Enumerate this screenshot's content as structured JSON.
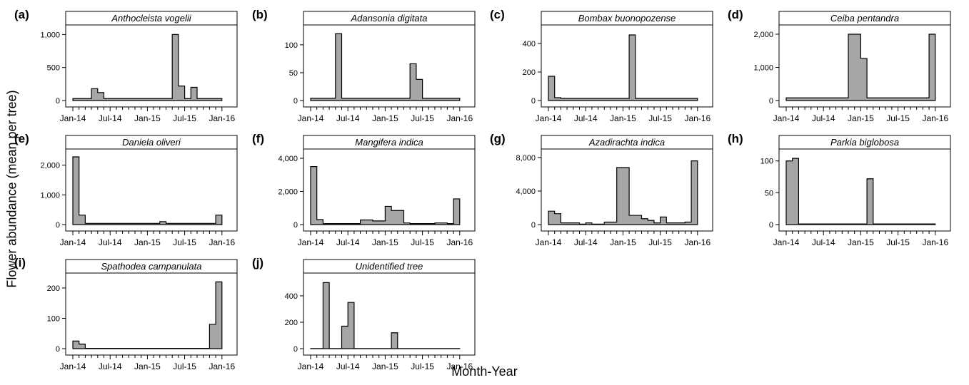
{
  "figure": {
    "ylabel": "Flower abundance (mean per tree)",
    "xlabel": "Month-Year"
  },
  "chart_data": [
    {
      "type": "area",
      "panel_label": "(a)",
      "title": "Anthocleista vogelii",
      "x": [
        "Jan-14",
        "Feb-14",
        "Mar-14",
        "Apr-14",
        "May-14",
        "Jun-14",
        "Jul-14",
        "Aug-14",
        "Sep-14",
        "Oct-14",
        "Nov-14",
        "Dec-14",
        "Jan-15",
        "Feb-15",
        "Mar-15",
        "Apr-15",
        "May-15",
        "Jun-15",
        "Jul-15",
        "Aug-15",
        "Sep-15",
        "Oct-15",
        "Nov-15",
        "Dec-15"
      ],
      "values": [
        30,
        30,
        30,
        180,
        120,
        30,
        30,
        30,
        30,
        30,
        30,
        30,
        30,
        30,
        30,
        30,
        1000,
        220,
        30,
        200,
        30,
        30,
        30,
        30
      ],
      "yticks": [
        0,
        500,
        1000
      ],
      "yticklabels": [
        "0",
        "500",
        "1,000"
      ],
      "ylim": [
        0,
        1080
      ],
      "xticklabels": [
        "Jan-14",
        "Jul-14",
        "Jan-15",
        "Jul-15",
        "Jan-16"
      ]
    },
    {
      "type": "area",
      "panel_label": "(b)",
      "title": "Adansonia digitata",
      "x": [
        "Jan-14",
        "Feb-14",
        "Mar-14",
        "Apr-14",
        "May-14",
        "Jun-14",
        "Jul-14",
        "Aug-14",
        "Sep-14",
        "Oct-14",
        "Nov-14",
        "Dec-14",
        "Jan-15",
        "Feb-15",
        "Mar-15",
        "Apr-15",
        "May-15",
        "Jun-15",
        "Jul-15",
        "Aug-15",
        "Sep-15",
        "Oct-15",
        "Nov-15",
        "Dec-15"
      ],
      "values": [
        4,
        4,
        4,
        4,
        120,
        4,
        4,
        4,
        4,
        4,
        4,
        4,
        4,
        4,
        4,
        4,
        66,
        38,
        4,
        4,
        4,
        4,
        4,
        4
      ],
      "yticks": [
        0,
        50,
        100
      ],
      "yticklabels": [
        "0",
        "50",
        "100"
      ],
      "ylim": [
        0,
        128
      ],
      "xticklabels": [
        "Jan-14",
        "Jul-14",
        "Jan-15",
        "Jul-15",
        "Jan-16"
      ]
    },
    {
      "type": "area",
      "panel_label": "(c)",
      "title": "Bombax buonopozense",
      "x": [
        "Jan-14",
        "Feb-14",
        "Mar-14",
        "Apr-14",
        "May-14",
        "Jun-14",
        "Jul-14",
        "Aug-14",
        "Sep-14",
        "Oct-14",
        "Nov-14",
        "Dec-14",
        "Jan-15",
        "Feb-15",
        "Mar-15",
        "Apr-15",
        "May-15",
        "Jun-15",
        "Jul-15",
        "Aug-15",
        "Sep-15",
        "Oct-15",
        "Nov-15",
        "Dec-15"
      ],
      "values": [
        170,
        20,
        15,
        15,
        15,
        15,
        15,
        15,
        15,
        15,
        15,
        15,
        15,
        460,
        15,
        15,
        15,
        15,
        15,
        15,
        15,
        15,
        15,
        15
      ],
      "yticks": [
        0,
        200,
        400
      ],
      "yticklabels": [
        "0",
        "200",
        "400"
      ],
      "ylim": [
        0,
        500
      ],
      "xticklabels": [
        "Jan-14",
        "Jul-14",
        "Jan-15",
        "Jul-15",
        "Jan-16"
      ]
    },
    {
      "type": "area",
      "panel_label": "(d)",
      "title": "Ceiba pentandra",
      "x": [
        "Jan-14",
        "Feb-14",
        "Mar-14",
        "Apr-14",
        "May-14",
        "Jun-14",
        "Jul-14",
        "Aug-14",
        "Sep-14",
        "Oct-14",
        "Nov-14",
        "Dec-14",
        "Jan-15",
        "Feb-15",
        "Mar-15",
        "Apr-15",
        "May-15",
        "Jun-15",
        "Jul-15",
        "Aug-15",
        "Sep-15",
        "Oct-15",
        "Nov-15",
        "Dec-15"
      ],
      "values": [
        80,
        80,
        80,
        80,
        80,
        80,
        80,
        80,
        80,
        80,
        2000,
        2000,
        1270,
        80,
        80,
        80,
        80,
        80,
        80,
        80,
        80,
        80,
        80,
        2000
      ],
      "yticks": [
        0,
        1000,
        2000
      ],
      "yticklabels": [
        "0",
        "1,000",
        "2,000"
      ],
      "ylim": [
        0,
        2150
      ],
      "xticklabels": [
        "Jan-14",
        "Jul-14",
        "Jan-15",
        "Jul-15",
        "Jan-16"
      ]
    },
    {
      "type": "area",
      "panel_label": "(e)",
      "title": "Daniela oliveri",
      "x": [
        "Jan-14",
        "Feb-14",
        "Mar-14",
        "Apr-14",
        "May-14",
        "Jun-14",
        "Jul-14",
        "Aug-14",
        "Sep-14",
        "Oct-14",
        "Nov-14",
        "Dec-14",
        "Jan-15",
        "Feb-15",
        "Mar-15",
        "Apr-15",
        "May-15",
        "Jun-15",
        "Jul-15",
        "Aug-15",
        "Sep-15",
        "Oct-15",
        "Nov-15",
        "Dec-15"
      ],
      "values": [
        2280,
        320,
        40,
        40,
        40,
        40,
        40,
        40,
        40,
        40,
        40,
        40,
        40,
        40,
        100,
        40,
        40,
        40,
        40,
        40,
        40,
        40,
        40,
        320
      ],
      "yticks": [
        0,
        1000,
        2000
      ],
      "yticklabels": [
        "0",
        "1,000",
        "2,000"
      ],
      "ylim": [
        0,
        2400
      ],
      "xticklabels": [
        "Jan-14",
        "Jul-14",
        "Jan-15",
        "Jul-15",
        "Jan-16"
      ]
    },
    {
      "type": "area",
      "panel_label": "(f)",
      "title": "Mangifera indica",
      "x": [
        "Jan-14",
        "Feb-14",
        "Mar-14",
        "Apr-14",
        "May-14",
        "Jun-14",
        "Jul-14",
        "Aug-14",
        "Sep-14",
        "Oct-14",
        "Nov-14",
        "Dec-14",
        "Jan-15",
        "Feb-15",
        "Mar-15",
        "Apr-15",
        "May-15",
        "Jun-15",
        "Jul-15",
        "Aug-15",
        "Sep-15",
        "Oct-15",
        "Nov-15",
        "Dec-15"
      ],
      "values": [
        3500,
        300,
        60,
        60,
        60,
        60,
        60,
        60,
        280,
        280,
        220,
        220,
        1100,
        850,
        850,
        100,
        60,
        60,
        60,
        60,
        100,
        100,
        60,
        1550
      ],
      "yticks": [
        0,
        2000,
        4000
      ],
      "yticklabels": [
        "0",
        "2,000",
        "4,000"
      ],
      "ylim": [
        0,
        4300
      ],
      "xticklabels": [
        "Jan-14",
        "Jul-14",
        "Jan-15",
        "Jul-15",
        "Jan-16"
      ]
    },
    {
      "type": "area",
      "panel_label": "(g)",
      "title": "Azadirachta indica",
      "x": [
        "Jan-14",
        "Feb-14",
        "Mar-14",
        "Apr-14",
        "May-14",
        "Jun-14",
        "Jul-14",
        "Aug-14",
        "Sep-14",
        "Oct-14",
        "Nov-14",
        "Dec-14",
        "Jan-15",
        "Feb-15",
        "Mar-15",
        "Apr-15",
        "May-15",
        "Jun-15",
        "Jul-15",
        "Aug-15",
        "Sep-15",
        "Oct-15",
        "Nov-15",
        "Dec-15"
      ],
      "values": [
        1600,
        1300,
        200,
        200,
        200,
        50,
        200,
        50,
        50,
        300,
        300,
        6800,
        6800,
        1100,
        1100,
        700,
        500,
        200,
        900,
        200,
        200,
        200,
        300,
        7600
      ],
      "yticks": [
        0,
        4000,
        8000
      ],
      "yticklabels": [
        "0",
        "4,000",
        "8,000"
      ],
      "ylim": [
        0,
        8500
      ],
      "xticklabels": [
        "Jan-14",
        "Jul-14",
        "Jan-15",
        "Jul-15",
        "Jan-16"
      ]
    },
    {
      "type": "area",
      "panel_label": "(h)",
      "title": "Parkia biglobosa",
      "x": [
        "Jan-14",
        "Feb-14",
        "Mar-14",
        "Apr-14",
        "May-14",
        "Jun-14",
        "Jul-14",
        "Aug-14",
        "Sep-14",
        "Oct-14",
        "Nov-14",
        "Dec-14",
        "Jan-15",
        "Feb-15",
        "Mar-15",
        "Apr-15",
        "May-15",
        "Jun-15",
        "Jul-15",
        "Aug-15",
        "Sep-15",
        "Oct-15",
        "Nov-15",
        "Dec-15"
      ],
      "values": [
        100,
        104,
        1,
        1,
        1,
        1,
        1,
        1,
        1,
        1,
        1,
        1,
        1,
        72,
        1,
        1,
        1,
        1,
        1,
        1,
        1,
        1,
        1,
        1
      ],
      "yticks": [
        0,
        50,
        100
      ],
      "yticklabels": [
        "0",
        "50",
        "100"
      ],
      "ylim": [
        0,
        112
      ],
      "xticklabels": [
        "Jan-14",
        "Jul-14",
        "Jan-15",
        "Jul-15",
        "Jan-16"
      ]
    },
    {
      "type": "area",
      "panel_label": "(i)",
      "title": "Spathodea campanulata",
      "x": [
        "Jan-14",
        "Feb-14",
        "Mar-14",
        "Apr-14",
        "May-14",
        "Jun-14",
        "Jul-14",
        "Aug-14",
        "Sep-14",
        "Oct-14",
        "Nov-14",
        "Dec-14",
        "Jan-15",
        "Feb-15",
        "Mar-15",
        "Apr-15",
        "May-15",
        "Jun-15",
        "Jul-15",
        "Aug-15",
        "Sep-15",
        "Oct-15",
        "Nov-15",
        "Dec-15"
      ],
      "values": [
        25,
        15,
        1,
        1,
        1,
        1,
        1,
        1,
        1,
        1,
        1,
        1,
        1,
        1,
        1,
        1,
        1,
        1,
        1,
        1,
        1,
        1,
        80,
        220
      ],
      "yticks": [
        0,
        100,
        200
      ],
      "yticklabels": [
        "0",
        "100",
        "200"
      ],
      "ylim": [
        0,
        235
      ],
      "xticklabels": [
        "Jan-14",
        "Jul-14",
        "Jan-15",
        "Jul-15",
        "Jan-16"
      ]
    },
    {
      "type": "area",
      "panel_label": "(j)",
      "title": "Unidentified tree",
      "x": [
        "Jan-14",
        "Feb-14",
        "Mar-14",
        "Apr-14",
        "May-14",
        "Jun-14",
        "Jul-14",
        "Aug-14",
        "Sep-14",
        "Oct-14",
        "Nov-14",
        "Dec-14",
        "Jan-15",
        "Feb-15",
        "Mar-15",
        "Apr-15",
        "May-15",
        "Jun-15",
        "Jul-15",
        "Aug-15",
        "Sep-15",
        "Oct-15",
        "Nov-15",
        "Dec-15"
      ],
      "values": [
        1,
        1,
        500,
        1,
        1,
        170,
        350,
        1,
        1,
        1,
        1,
        1,
        1,
        120,
        1,
        1,
        1,
        1,
        1,
        1,
        1,
        1,
        1,
        1
      ],
      "yticks": [
        0,
        200,
        400
      ],
      "yticklabels": [
        "0",
        "200",
        "400"
      ],
      "ylim": [
        0,
        540
      ],
      "xticklabels": [
        "Jan-14",
        "Jul-14",
        "Jan-15",
        "Jul-15",
        "Jan-16"
      ]
    }
  ],
  "colors": {
    "fill": "#a6a6a6",
    "stroke": "#000000",
    "background": "#ffffff"
  }
}
